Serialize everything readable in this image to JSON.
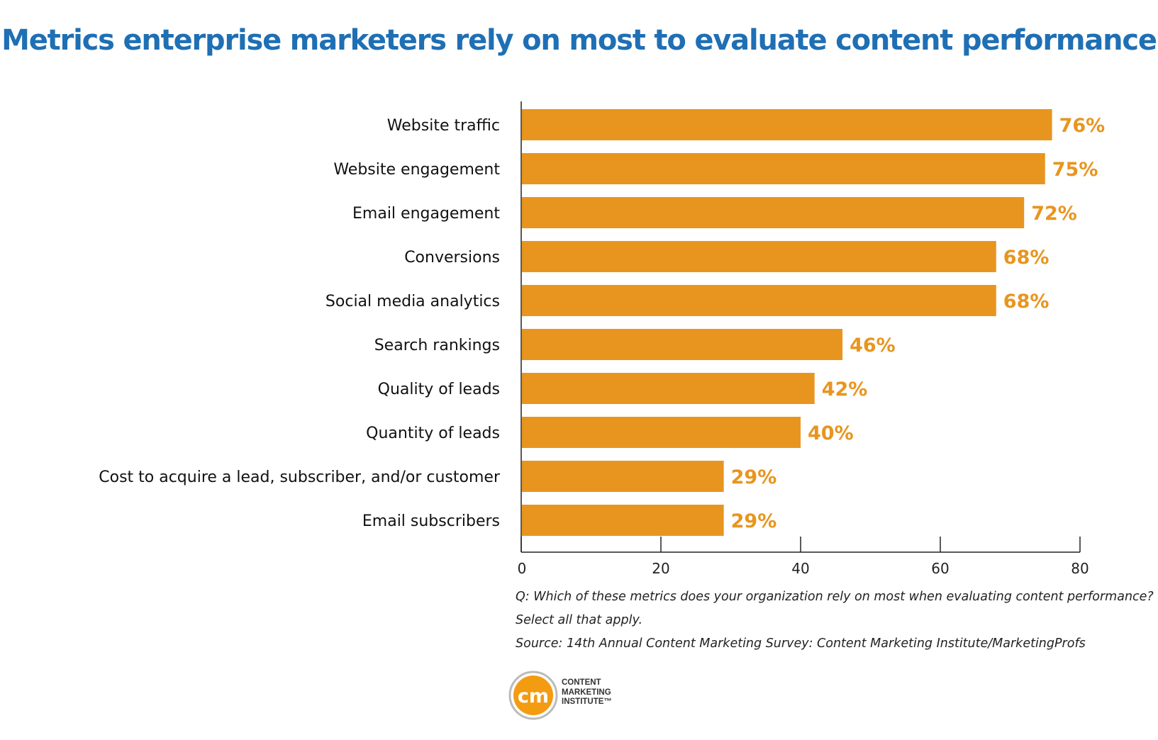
{
  "title": "Metrics enterprise marketers rely on most to evaluate content performance",
  "chart_data": {
    "type": "bar",
    "orientation": "horizontal",
    "categories": [
      "Website traffic",
      "Website engagement",
      "Email engagement",
      "Conversions",
      "Social media analytics",
      "Search rankings",
      "Quality of leads",
      "Quantity of leads",
      "Cost to acquire a lead, subscriber, and/or customer",
      "Email subscribers"
    ],
    "values": [
      76,
      75,
      72,
      68,
      68,
      46,
      42,
      40,
      29,
      29
    ],
    "data_labels": [
      "76%",
      "75%",
      "72%",
      "68%",
      "68%",
      "46%",
      "42%",
      "40%",
      "29%",
      "29%"
    ],
    "xlim": [
      0,
      80
    ],
    "xticks": [
      0,
      20,
      40,
      60,
      80
    ],
    "grid": false,
    "bar_color": "#e8951f",
    "label_color": "#e8951f"
  },
  "footnotes": {
    "question_line1": "Q: Which of these metrics does your organization rely on most when evaluating content performance?",
    "question_line2": "Select all that apply.",
    "source": "Source: 14th Annual Content Marketing Survey: Content Marketing Institute/MarketingProfs"
  },
  "logo": {
    "mark": "cm",
    "line1": "CONTENT",
    "line2": "MARKETING",
    "line3": "INSTITUTE™",
    "ring_color": "#bbbbbb",
    "fill_color": "#f39c12"
  },
  "colors": {
    "title": "#1f6fb4",
    "bar": "#e8951f",
    "axis": "#222222",
    "text": "#111111"
  }
}
